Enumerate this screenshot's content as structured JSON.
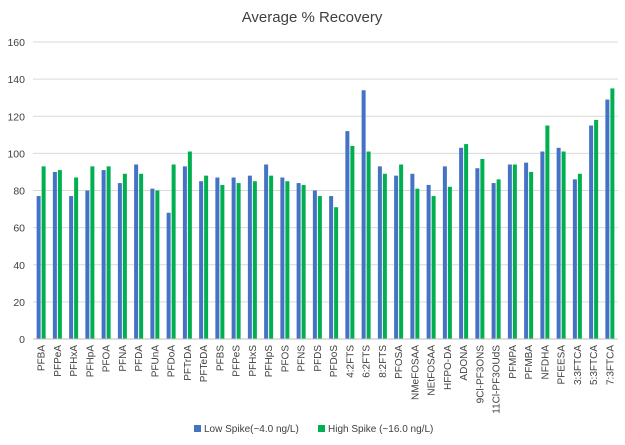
{
  "chart_data": {
    "type": "bar",
    "title": "Average % Recovery",
    "xlabel": "",
    "ylabel": "",
    "ylim": [
      0,
      160
    ],
    "yticks": [
      0,
      20,
      40,
      60,
      80,
      100,
      120,
      140,
      160
    ],
    "grid": true,
    "legend_position": "bottom",
    "categories": [
      "PFBA",
      "PFPeA",
      "PFHxA",
      "PFHpA",
      "PFOA",
      "PFNA",
      "PFDA",
      "PFUnA",
      "PFDoA",
      "PFTrDA",
      "PFTeDA",
      "PFBS",
      "PFPeS",
      "PFHxS",
      "PFHpS",
      "PFOS",
      "PFNS",
      "PFDS",
      "PFDoS",
      "4:2FTS",
      "6:2FTS",
      "8:2FTS",
      "PFOSA",
      "NMeFOSAA",
      "NEtFOSAA",
      "HFPO-DA",
      "ADONA",
      "9Cl-PF3ONS",
      "11Cl-PF3OUdS",
      "PFMPA",
      "PFMBA",
      "NFDHA",
      "PFEESA",
      "3:3FTCA",
      "5:3FTCA",
      "7:3FTCA"
    ],
    "series": [
      {
        "name": "Low Spike(~4.0 ng/L)",
        "color": "#4472c4",
        "values": [
          77,
          90,
          77,
          80,
          91,
          84,
          94,
          81,
          68,
          93,
          85,
          87,
          87,
          88,
          94,
          87,
          84,
          80,
          77,
          112,
          134,
          93,
          88,
          89,
          83,
          93,
          103,
          92,
          84,
          94,
          95,
          101,
          103,
          86,
          115,
          129
        ]
      },
      {
        "name": "High Spike (~16.0 ng/L)",
        "color": "#00b050",
        "values": [
          93,
          91,
          87,
          93,
          93,
          89,
          89,
          80,
          94,
          101,
          88,
          83,
          84,
          85,
          88,
          85,
          83,
          77,
          71,
          104,
          101,
          89,
          94,
          81,
          77,
          82,
          105,
          97,
          86,
          94,
          90,
          115,
          101,
          89,
          118,
          135
        ]
      }
    ]
  }
}
